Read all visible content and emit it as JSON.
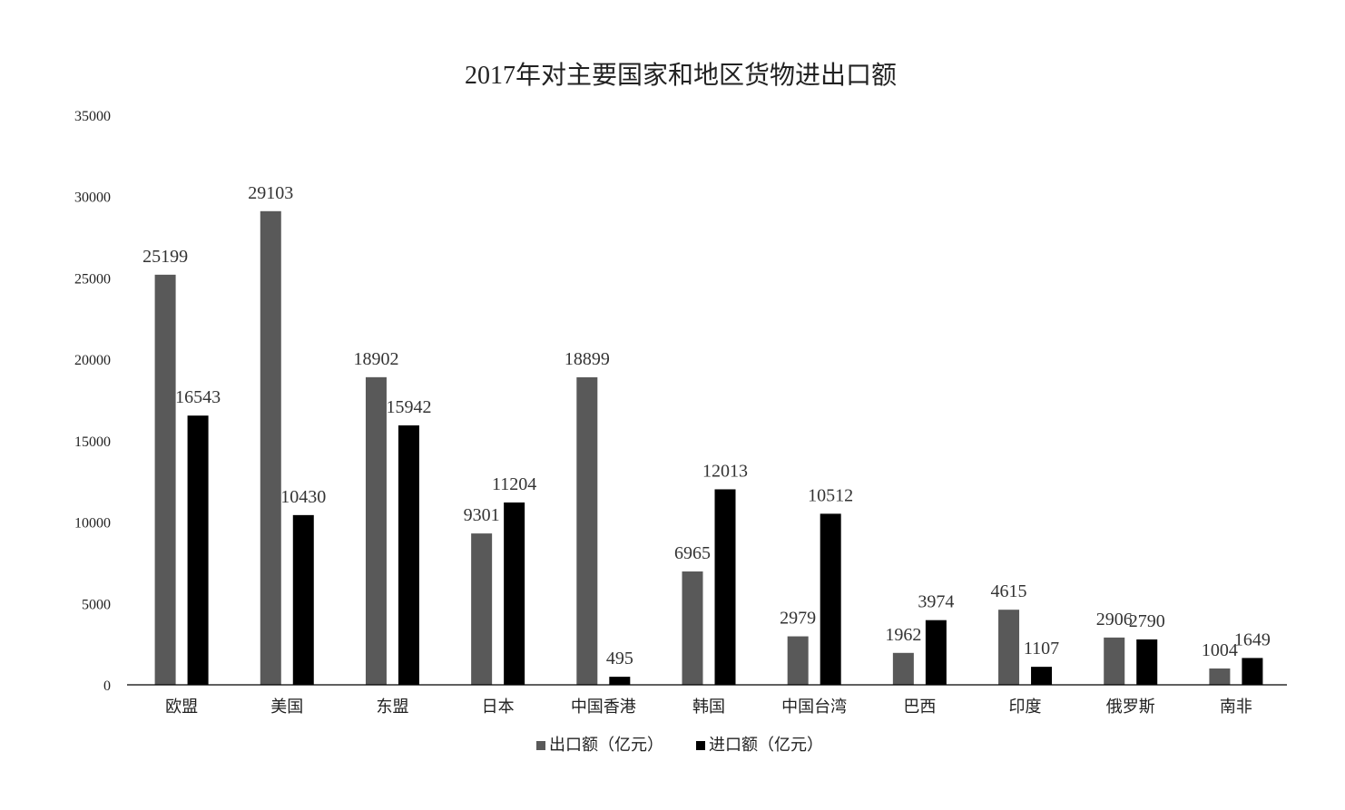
{
  "chart_data": {
    "type": "bar",
    "title": "2017年对主要国家和地区货物进出口额",
    "xlabel": "",
    "ylabel": "",
    "ylim": [
      0,
      35000
    ],
    "yticks": [
      "0",
      "5000",
      "10000",
      "15000",
      "20000",
      "25000",
      "30000",
      "35000"
    ],
    "categories": [
      "欧盟",
      "美国",
      "东盟",
      "日本",
      "中国香港",
      "韩国",
      "中国台湾",
      "巴西",
      "印度",
      "俄罗斯",
      "南非"
    ],
    "series": [
      {
        "name": "出口额（亿元）",
        "color": "#595959",
        "values": [
          25199,
          29103,
          18902,
          9301,
          18899,
          6965,
          2979,
          1962,
          4615,
          2906,
          1004
        ]
      },
      {
        "name": "进口额（亿元）",
        "color": "#000000",
        "values": [
          16543,
          10430,
          15942,
          11204,
          495,
          12013,
          10512,
          3974,
          1107,
          2790,
          1649
        ]
      }
    ],
    "grid": false,
    "legend_position": "bottom"
  }
}
